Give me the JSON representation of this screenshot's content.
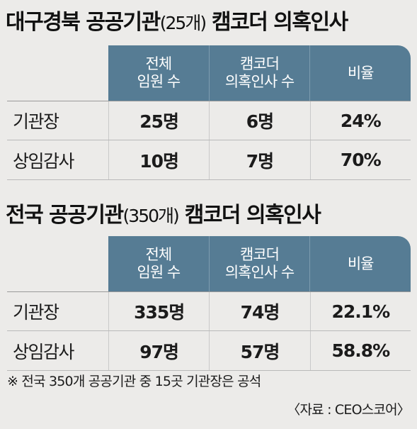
{
  "section1": {
    "title": "대구경북 공공기관",
    "title_small": "(25개)",
    "title_suffix": "캠코더 의혹인사",
    "headers": [
      [
        "전체",
        "임원 수"
      ],
      [
        "캠코더",
        "의혹인사 수"
      ],
      [
        "비율"
      ]
    ],
    "rows": [
      {
        "label": "기관장",
        "values": [
          "25명",
          "6명",
          "24%"
        ]
      },
      {
        "label": "상임감사",
        "values": [
          "10명",
          "7명",
          "70%"
        ]
      }
    ]
  },
  "section2": {
    "title": "전국 공공기관",
    "title_small": "(350개)",
    "title_suffix": "캠코더 의혹인사",
    "headers": [
      [
        "전체",
        "임원 수"
      ],
      [
        "캠코더",
        "의혹인사 수"
      ],
      [
        "비율"
      ]
    ],
    "rows": [
      {
        "label": "기관장",
        "values": [
          "335명",
          "74명",
          "22.1%"
        ]
      },
      {
        "label": "상임감사",
        "values": [
          "97명",
          "57명",
          "58.8%"
        ]
      }
    ]
  },
  "footnote": "※ 전국 350개 공공기관 중 15곳 기관장은 공석",
  "source": "〈자료 : CEO스코어〉",
  "colors": {
    "background": "#ecebe9",
    "header_bar": "#567c94",
    "header_text": "#ffffff"
  }
}
